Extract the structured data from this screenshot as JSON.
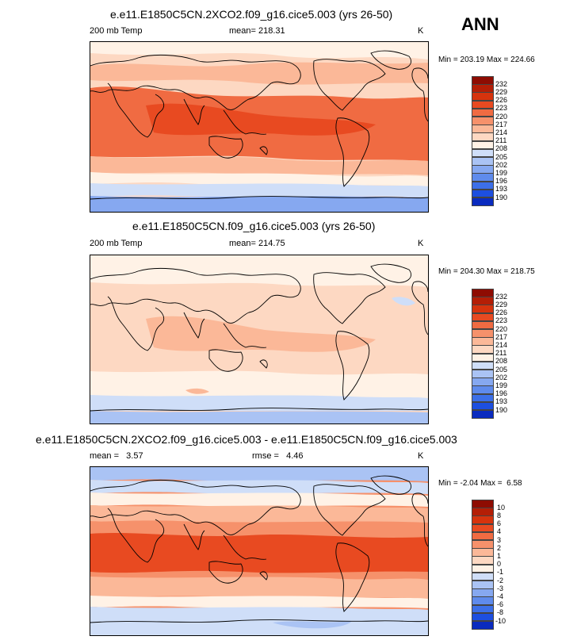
{
  "season": "ANN",
  "colors": {
    "abs": [
      "#08088f",
      "#0a2bbf",
      "#1d4fe0",
      "#3c6fe8",
      "#5f8bec",
      "#86a8f0",
      "#aac3f4",
      "#cfdef8",
      "#fff2e6",
      "#fdd8c2",
      "#fbb898",
      "#f6916b",
      "#f06b42",
      "#e84a21",
      "#d6330d",
      "#b41e06",
      "#8e0c02"
    ],
    "diff": [
      "#08088f",
      "#0a2bbf",
      "#1d4fe0",
      "#3c6fe8",
      "#5f8bec",
      "#86a8f0",
      "#aac3f4",
      "#cfdef8",
      "#fff2e6",
      "#fdd8c2",
      "#fbb898",
      "#f6916b",
      "#f06b42",
      "#e84a21",
      "#d6330d",
      "#b41e06",
      "#8e0c02"
    ]
  },
  "panels": [
    {
      "title": "e.e11.E1850C5CN.2XCO2.f09_g16.cice5.003 (yrs 26-50)",
      "variable": "200 mb Temp",
      "mean": "mean= 218.31",
      "unit": "K",
      "minmax": "Min = 203.19 Max = 224.66",
      "levels": [
        "232",
        "229",
        "226",
        "223",
        "220",
        "217",
        "214",
        "211",
        "208",
        "205",
        "202",
        "199",
        "196",
        "193",
        "190"
      ]
    },
    {
      "title": "e.e11.E1850C5CN.f09_g16.cice5.003 (yrs 26-50)",
      "variable": "200 mb Temp",
      "mean": "mean= 214.75",
      "unit": "K",
      "minmax": "Min = 204.30 Max = 218.75",
      "levels": [
        "232",
        "229",
        "226",
        "223",
        "220",
        "217",
        "214",
        "211",
        "208",
        "205",
        "202",
        "199",
        "196",
        "193",
        "190"
      ]
    },
    {
      "title": "e.e11.E1850C5CN.2XCO2.f09_g16.cice5.003 - e.e11.E1850C5CN.f09_g16.cice5.003",
      "mean": "mean =   3.57",
      "rmse": "rmse =   4.46",
      "unit": "K",
      "minmax": "Min = -2.04 Max =  6.58",
      "levels": [
        "10",
        "8",
        "6",
        "4",
        "3",
        "2",
        "1",
        "0",
        "-1",
        "-2",
        "-3",
        "-4",
        "-6",
        "-8",
        "-10"
      ]
    }
  ]
}
